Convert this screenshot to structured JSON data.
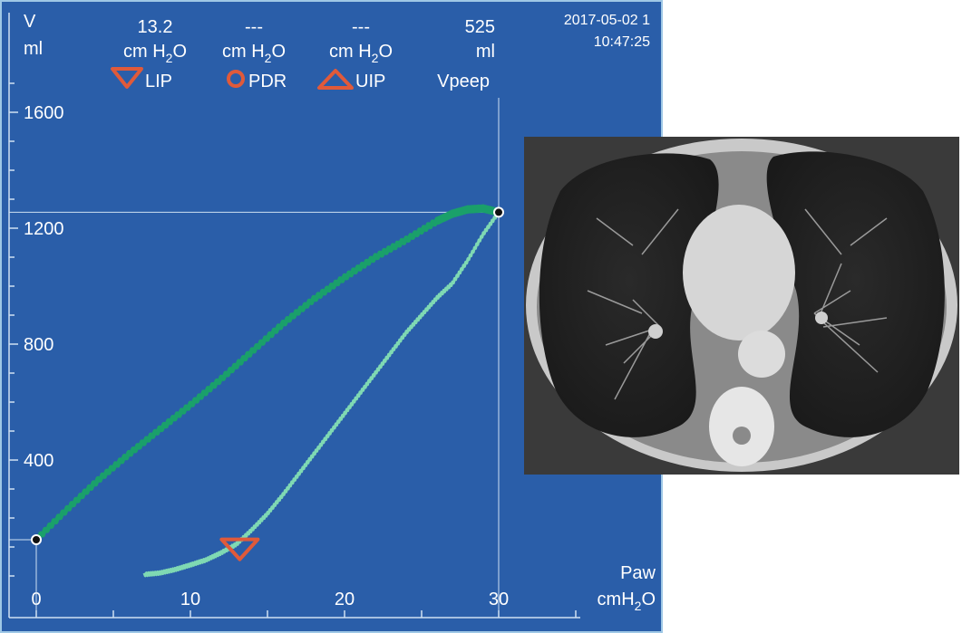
{
  "monitor": {
    "timestamp_date": "2017-05-02 1",
    "timestamp_time": "10:47:25",
    "y_axis": {
      "name": "V",
      "unit": "ml"
    },
    "x_axis": {
      "name": "Paw",
      "unit": "cmH2O",
      "unit_main": "cmH",
      "unit_sub": "2",
      "unit_tail": "O"
    },
    "readouts": [
      {
        "key": "lip",
        "value": "13.2",
        "unit_main": "cm H",
        "unit_sub": "2",
        "unit_tail": "O",
        "label": "LIP",
        "marker": "triangle-down"
      },
      {
        "key": "pdr",
        "value": "---",
        "unit_main": "cm H",
        "unit_sub": "2",
        "unit_tail": "O",
        "label": "PDR",
        "marker": "circle"
      },
      {
        "key": "uip",
        "value": "---",
        "unit_main": "cm H",
        "unit_sub": "2",
        "unit_tail": "O",
        "label": "UIP",
        "marker": "triangle-up"
      },
      {
        "key": "vpeep",
        "value": "525",
        "unit_main": "ml",
        "unit_sub": "",
        "unit_tail": "",
        "label": "Vpeep",
        "marker": "none"
      }
    ],
    "colors": {
      "background": "#2a5ea9",
      "frame": "#9fc8e6",
      "inflation_curve": "#1aa06a",
      "deflation_curve": "#7fd9b3",
      "marker": "#e05a3a",
      "crosshair": "#cfe0f2",
      "point": "#111111"
    }
  },
  "chart_data": {
    "type": "line",
    "title": "",
    "xlabel": "Paw cmH2O",
    "ylabel": "V ml",
    "xlim": [
      0,
      30
    ],
    "ylim": [
      0,
      1600
    ],
    "x_ticks": [
      0,
      10,
      20,
      30
    ],
    "y_ticks": [
      400,
      800,
      1200,
      1600
    ],
    "grid": false,
    "legend": "none",
    "series": [
      {
        "role": "inflation",
        "x": [
          0,
          2,
          4,
          6,
          8,
          10,
          12,
          14,
          16,
          18,
          20,
          22,
          24,
          26,
          27,
          28,
          29,
          30
        ],
        "y": [
          125,
          230,
          330,
          420,
          505,
          590,
          680,
          775,
          870,
          955,
          1030,
          1100,
          1160,
          1225,
          1250,
          1265,
          1268,
          1255
        ]
      },
      {
        "role": "deflation",
        "x": [
          30,
          29,
          28,
          27,
          26,
          25,
          24,
          23,
          22,
          21,
          20,
          19,
          18,
          17,
          16,
          15,
          14,
          13,
          12,
          11,
          10,
          9,
          8,
          7
        ],
        "y": [
          1255,
          1180,
          1090,
          1010,
          960,
          900,
          840,
          770,
          700,
          630,
          560,
          490,
          420,
          350,
          280,
          215,
          160,
          110,
          80,
          55,
          38,
          22,
          10,
          5
        ]
      }
    ],
    "points": [
      {
        "name": "start",
        "x": 0,
        "y": 125
      },
      {
        "name": "end",
        "x": 30,
        "y": 1255
      }
    ],
    "annotations": [
      {
        "label": "LIP",
        "x": 13.2,
        "y": 95,
        "marker": "triangle-down"
      }
    ],
    "crosshair": {
      "x": 30,
      "y": 1255
    }
  },
  "ct_image": {
    "description_name": "ct-scan-chest-axial"
  }
}
